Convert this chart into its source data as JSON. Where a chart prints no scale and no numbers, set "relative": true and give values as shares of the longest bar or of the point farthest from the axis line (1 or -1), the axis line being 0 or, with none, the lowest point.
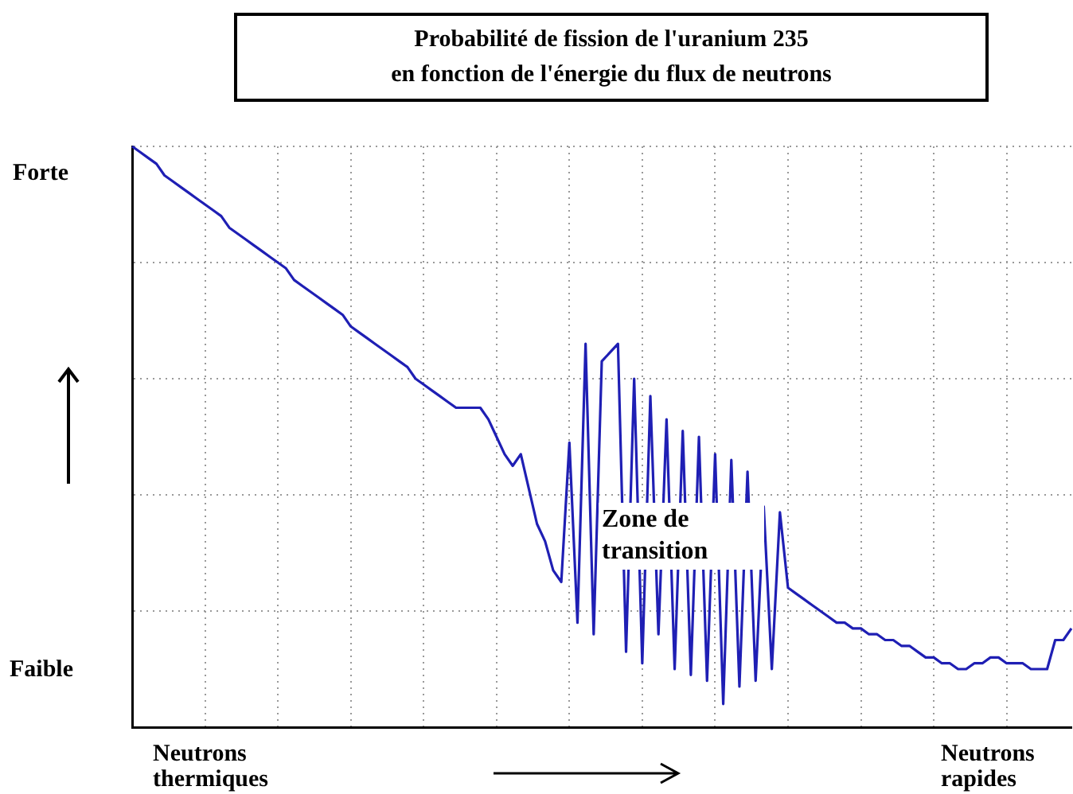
{
  "chart_data": {
    "type": "line",
    "title": "Probabilité de fission de l'uranium 235",
    "subtitle": "en fonction de l'énergie du flux de neutrons",
    "relative": true,
    "grid": true,
    "legend": false,
    "marker": "none",
    "line_style": "solid",
    "annotations": [
      "Forte",
      "Faible",
      "Neutrons thermiques",
      "Neutrons rapides",
      "Zone de transition"
    ],
    "categories": [
      null,
      null,
      null,
      null,
      null,
      null,
      null,
      null,
      null,
      null,
      null,
      null,
      null,
      null,
      null,
      null,
      null,
      null,
      null,
      null,
      null,
      null,
      null,
      null,
      null,
      null,
      null,
      null,
      null,
      null,
      null,
      null,
      null,
      null,
      null,
      null,
      null,
      null,
      null,
      null,
      null,
      null,
      null,
      null,
      null,
      null,
      null,
      null,
      null,
      null,
      null,
      null,
      null,
      null,
      null,
      null,
      null,
      null,
      null,
      null,
      null,
      null,
      null,
      null,
      null,
      null,
      null,
      null,
      null,
      null,
      null,
      null,
      null,
      null,
      null,
      null,
      null,
      null,
      null,
      null,
      null,
      null,
      null,
      null,
      null,
      null,
      null,
      null,
      null,
      null,
      null,
      null,
      null,
      null,
      null,
      null,
      null,
      null,
      null,
      null,
      null,
      null,
      null,
      null,
      null,
      null,
      null,
      null,
      null,
      null,
      null,
      null,
      null,
      null,
      null,
      null,
      null
    ],
    "series": [
      {
        "color": "#1f1fb4",
        "values": [
          1.0,
          0.99,
          0.98,
          0.97,
          0.95,
          0.94,
          0.93,
          0.92,
          0.91,
          0.9,
          0.89,
          0.88,
          0.86,
          0.85,
          0.84,
          0.83,
          0.82,
          0.81,
          0.8,
          0.79,
          0.77,
          0.76,
          0.75,
          0.74,
          0.73,
          0.72,
          0.71,
          0.69,
          0.68,
          0.67,
          0.66,
          0.65,
          0.64,
          0.63,
          0.62,
          0.6,
          0.59,
          0.58,
          0.57,
          0.56,
          0.55,
          0.55,
          0.55,
          0.55,
          0.53,
          0.5,
          0.47,
          0.45,
          0.47,
          0.41,
          0.35,
          0.32,
          0.27,
          0.25,
          0.49,
          0.18,
          0.66,
          0.16,
          0.63,
          null,
          0.66,
          0.13,
          0.6,
          0.11,
          0.57,
          0.16,
          0.53,
          0.1,
          0.51,
          0.09,
          0.5,
          0.08,
          0.47,
          0.04,
          0.46,
          0.07,
          0.44,
          0.08,
          0.38,
          0.1,
          0.37,
          0.24,
          0.23,
          0.22,
          0.21,
          0.2,
          0.19,
          0.18,
          0.18,
          0.17,
          0.17,
          0.16,
          0.16,
          0.15,
          0.15,
          0.14,
          0.14,
          0.13,
          0.12,
          0.12,
          0.11,
          0.11,
          0.1,
          0.1,
          0.11,
          0.11,
          0.12,
          0.12,
          0.11,
          0.11,
          0.11,
          0.1,
          0.1,
          0.1,
          0.15,
          0.15,
          0.17
        ]
      }
    ]
  }
}
